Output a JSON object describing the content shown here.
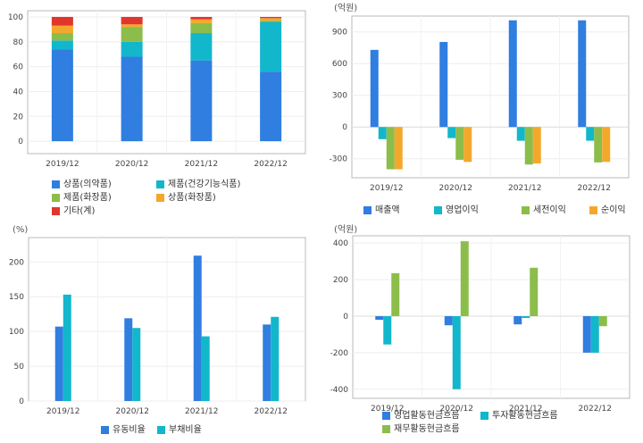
{
  "chart_data": [
    {
      "type": "bar",
      "stacked": true,
      "unit": "",
      "categories": [
        "2019/12",
        "2020/12",
        "2021/12",
        "2022/12"
      ],
      "ylim": [
        -10,
        105
      ],
      "yticks": [
        0,
        20,
        40,
        60,
        80,
        100
      ],
      "grid": true,
      "legend_position": "bottom",
      "series": [
        {
          "name": "상품(의약품)",
          "color": "#2f7ee0",
          "values": [
            74,
            68,
            65,
            56
          ]
        },
        {
          "name": "제품(건강기능식품)",
          "color": "#12b7cc",
          "values": [
            7,
            12,
            22,
            40
          ]
        },
        {
          "name": "제품(화장품)",
          "color": "#8cbd4a",
          "values": [
            6,
            12,
            8,
            1
          ]
        },
        {
          "name": "상품(화장품)",
          "color": "#f4a82b",
          "values": [
            6,
            2,
            3,
            2
          ]
        },
        {
          "name": "기타(계)",
          "color": "#e0362c",
          "values": [
            7,
            6,
            2,
            1
          ]
        }
      ]
    },
    {
      "type": "bar",
      "unit": "(억원)",
      "categories": [
        "2019/12",
        "2020/12",
        "2021/12",
        "2022/12"
      ],
      "ylim": [
        -480,
        1050
      ],
      "yticks": [
        -300,
        0,
        300,
        600,
        900
      ],
      "grid": true,
      "legend_position": "bottom",
      "series": [
        {
          "name": "매출액",
          "color": "#2f7ee0",
          "values": [
            730,
            805,
            1010,
            1010
          ]
        },
        {
          "name": "영업이익",
          "color": "#12b7cc",
          "values": [
            -115,
            -105,
            -130,
            -130
          ]
        },
        {
          "name": "세전이익",
          "color": "#8cbd4a",
          "values": [
            -400,
            -310,
            -355,
            -335
          ]
        },
        {
          "name": "순이익",
          "color": "#f4a82b",
          "values": [
            -400,
            -330,
            -345,
            -330
          ]
        }
      ]
    },
    {
      "type": "bar",
      "unit": "(%)",
      "categories": [
        "2019/12",
        "2020/12",
        "2021/12",
        "2022/12"
      ],
      "ylim": [
        0,
        235
      ],
      "yticks": [
        0,
        50,
        100,
        150,
        200
      ],
      "grid": true,
      "legend_position": "bottom",
      "series": [
        {
          "name": "유동비율",
          "color": "#2f7ee0",
          "values": [
            107,
            119,
            209,
            110
          ]
        },
        {
          "name": "부채비율",
          "color": "#12b7cc",
          "values": [
            153,
            105,
            93,
            121
          ]
        }
      ]
    },
    {
      "type": "bar",
      "unit": "(억원)",
      "categories": [
        "2019/12",
        "2020/12",
        "2021/12",
        "2022/12"
      ],
      "ylim": [
        -450,
        440
      ],
      "yticks": [
        -400,
        -200,
        0,
        200,
        400
      ],
      "grid": true,
      "legend_position": "bottom",
      "series": [
        {
          "name": "영업활동현금흐름",
          "color": "#2f7ee0",
          "values": [
            -20,
            -50,
            -45,
            -200
          ]
        },
        {
          "name": "투자활동현금흐름",
          "color": "#12b7cc",
          "values": [
            -155,
            -400,
            -10,
            -200
          ]
        },
        {
          "name": "재무활동현금흐름",
          "color": "#8cbd4a",
          "values": [
            235,
            410,
            265,
            -55
          ]
        }
      ]
    }
  ]
}
